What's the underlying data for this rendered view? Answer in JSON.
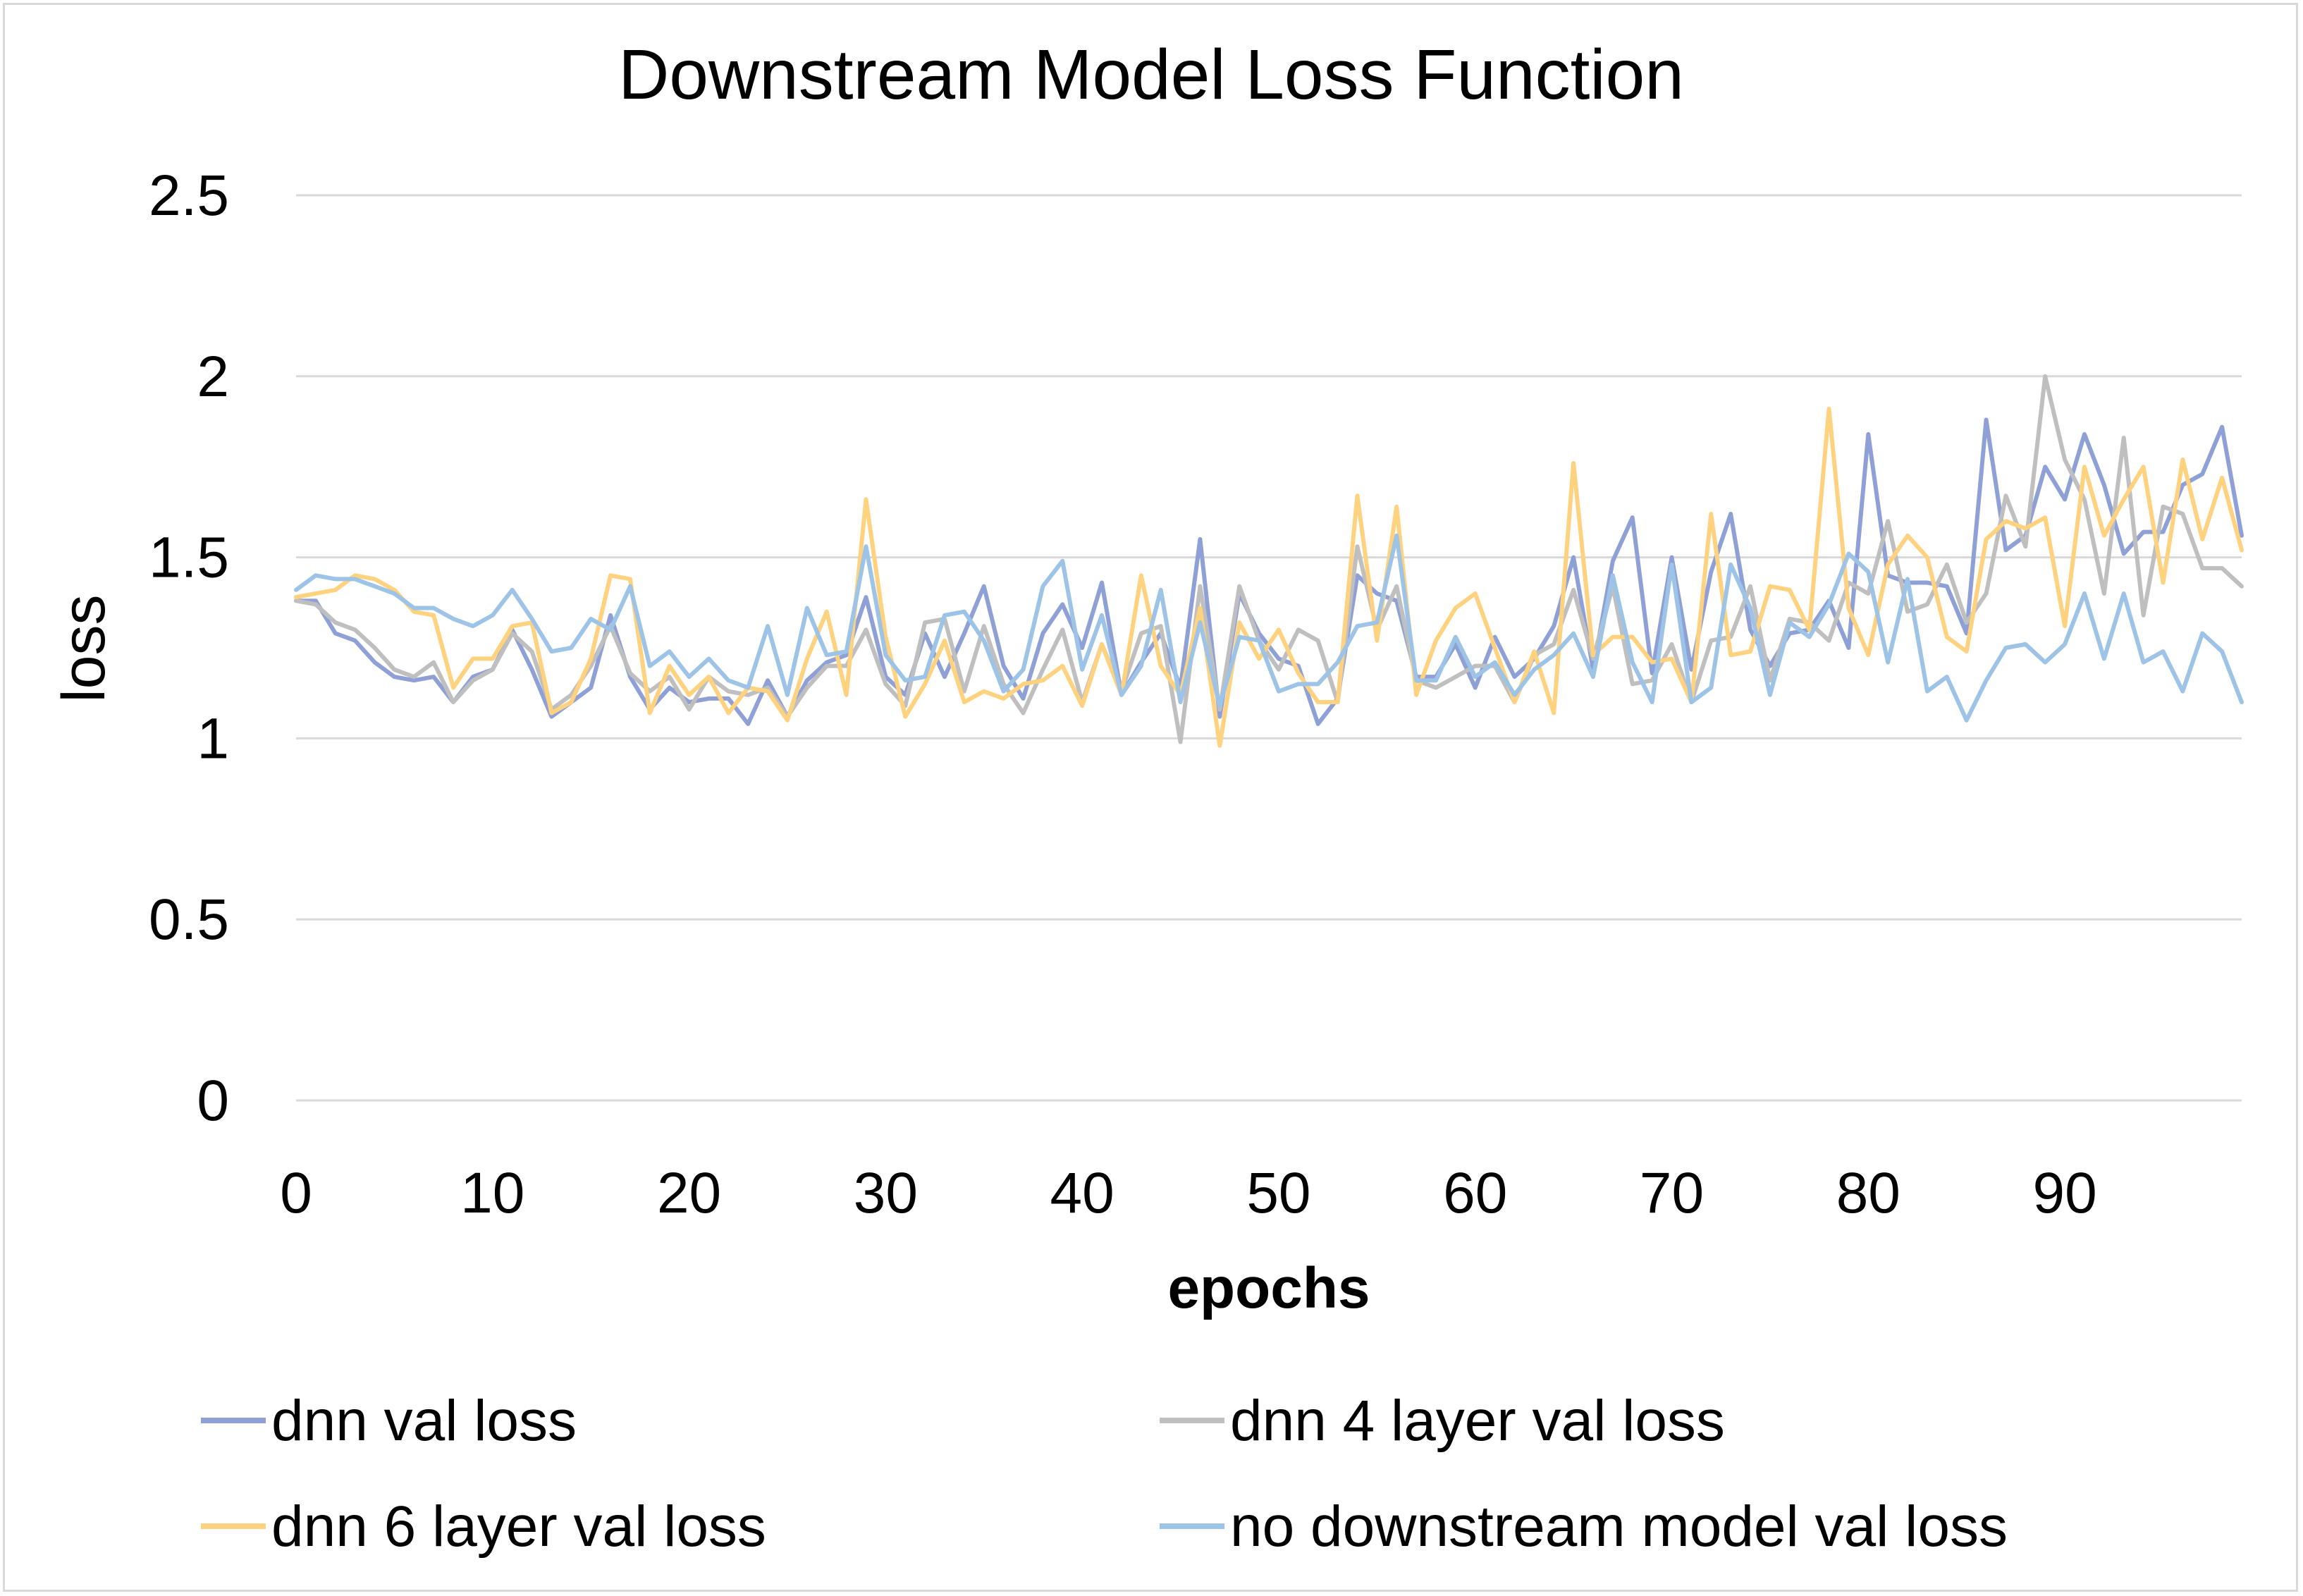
{
  "chart_data": {
    "type": "line",
    "title": "Downstream Model Loss Function",
    "xlabel": "epochs",
    "ylabel": "loss",
    "xlim": [
      0,
      99
    ],
    "ylim": [
      0,
      2.5
    ],
    "x_ticks": [
      "0",
      "10",
      "20",
      "30",
      "40",
      "50",
      "60",
      "70",
      "80",
      "90"
    ],
    "y_ticks": [
      "0",
      "0.5",
      "1",
      "1.5",
      "2",
      "2.5"
    ],
    "grid": true,
    "legend_position": "bottom",
    "series": [
      {
        "name": "dnn val loss",
        "color": "#8ea0d6",
        "values": [
          1.38,
          1.38,
          1.29,
          1.27,
          1.21,
          1.17,
          1.16,
          1.17,
          1.1,
          1.17,
          1.19,
          1.3,
          1.19,
          1.06,
          1.1,
          1.14,
          1.34,
          1.17,
          1.08,
          1.14,
          1.1,
          1.11,
          1.11,
          1.04,
          1.16,
          1.06,
          1.16,
          1.21,
          1.23,
          1.39,
          1.17,
          1.12,
          1.29,
          1.17,
          1.29,
          1.42,
          1.2,
          1.11,
          1.29,
          1.37,
          1.25,
          1.43,
          1.12,
          1.21,
          1.29,
          1.14,
          1.55,
          1.06,
          1.4,
          1.29,
          1.22,
          1.2,
          1.04,
          1.11,
          1.45,
          1.4,
          1.38,
          1.17,
          1.17,
          1.26,
          1.14,
          1.28,
          1.17,
          1.22,
          1.31,
          1.5,
          1.19,
          1.49,
          1.61,
          1.18,
          1.5,
          1.19,
          1.46,
          1.62,
          1.3,
          1.2,
          1.29,
          1.3,
          1.38,
          1.25,
          1.84,
          1.45,
          1.43,
          1.43,
          1.42,
          1.29,
          1.88,
          1.52,
          1.56,
          1.75,
          1.66,
          1.84,
          1.7,
          1.51,
          1.57,
          1.57,
          1.7,
          1.73,
          1.86,
          1.56
        ]
      },
      {
        "name": "dnn 4 layer val loss",
        "color": "#bfbfbf",
        "values": [
          1.38,
          1.37,
          1.32,
          1.3,
          1.25,
          1.19,
          1.17,
          1.21,
          1.1,
          1.16,
          1.19,
          1.29,
          1.24,
          1.08,
          1.12,
          1.2,
          1.31,
          1.18,
          1.13,
          1.17,
          1.08,
          1.17,
          1.13,
          1.12,
          1.14,
          1.06,
          1.14,
          1.2,
          1.2,
          1.3,
          1.15,
          1.09,
          1.32,
          1.33,
          1.13,
          1.31,
          1.15,
          1.07,
          1.19,
          1.3,
          1.1,
          1.26,
          1.13,
          1.29,
          1.31,
          0.99,
          1.42,
          1.08,
          1.42,
          1.27,
          1.19,
          1.3,
          1.27,
          1.1,
          1.53,
          1.3,
          1.42,
          1.16,
          1.14,
          1.17,
          1.2,
          1.2,
          1.1,
          1.23,
          1.26,
          1.41,
          1.22,
          1.42,
          1.15,
          1.16,
          1.26,
          1.1,
          1.27,
          1.28,
          1.42,
          1.16,
          1.33,
          1.32,
          1.27,
          1.43,
          1.4,
          1.6,
          1.35,
          1.37,
          1.48,
          1.32,
          1.4,
          1.67,
          1.53,
          2.0,
          1.77,
          1.66,
          1.4,
          1.83,
          1.34,
          1.64,
          1.62,
          1.47,
          1.47,
          1.42
        ]
      },
      {
        "name": "dnn 6 layer val loss",
        "color": "#ffd27f",
        "values": [
          1.39,
          1.4,
          1.41,
          1.45,
          1.44,
          1.41,
          1.35,
          1.34,
          1.14,
          1.22,
          1.22,
          1.31,
          1.32,
          1.07,
          1.1,
          1.22,
          1.45,
          1.44,
          1.07,
          1.2,
          1.12,
          1.17,
          1.07,
          1.14,
          1.13,
          1.05,
          1.22,
          1.35,
          1.12,
          1.66,
          1.28,
          1.06,
          1.15,
          1.27,
          1.1,
          1.13,
          1.11,
          1.15,
          1.16,
          1.2,
          1.09,
          1.26,
          1.12,
          1.45,
          1.2,
          1.12,
          1.36,
          0.98,
          1.32,
          1.22,
          1.3,
          1.18,
          1.1,
          1.1,
          1.67,
          1.27,
          1.64,
          1.12,
          1.27,
          1.36,
          1.4,
          1.25,
          1.1,
          1.24,
          1.07,
          1.76,
          1.23,
          1.28,
          1.28,
          1.21,
          1.22,
          1.1,
          1.62,
          1.23,
          1.24,
          1.42,
          1.41,
          1.3,
          1.91,
          1.36,
          1.23,
          1.48,
          1.56,
          1.5,
          1.28,
          1.24,
          1.55,
          1.6,
          1.58,
          1.61,
          1.31,
          1.75,
          1.56,
          1.66,
          1.75,
          1.43,
          1.77,
          1.55,
          1.72,
          1.52
        ]
      },
      {
        "name": "no downstream model val loss",
        "color": "#9dc3e6",
        "values": [
          1.41,
          1.45,
          1.44,
          1.44,
          1.42,
          1.4,
          1.36,
          1.36,
          1.33,
          1.31,
          1.34,
          1.41,
          1.33,
          1.24,
          1.25,
          1.33,
          1.3,
          1.42,
          1.2,
          1.24,
          1.17,
          1.22,
          1.16,
          1.14,
          1.31,
          1.12,
          1.36,
          1.23,
          1.24,
          1.53,
          1.23,
          1.16,
          1.17,
          1.34,
          1.35,
          1.27,
          1.13,
          1.19,
          1.42,
          1.49,
          1.19,
          1.34,
          1.12,
          1.2,
          1.41,
          1.1,
          1.32,
          1.09,
          1.28,
          1.27,
          1.13,
          1.15,
          1.15,
          1.21,
          1.31,
          1.32,
          1.56,
          1.16,
          1.16,
          1.28,
          1.17,
          1.21,
          1.12,
          1.19,
          1.23,
          1.29,
          1.17,
          1.45,
          1.21,
          1.1,
          1.48,
          1.1,
          1.14,
          1.48,
          1.36,
          1.12,
          1.32,
          1.28,
          1.37,
          1.51,
          1.46,
          1.21,
          1.44,
          1.13,
          1.17,
          1.05,
          1.16,
          1.25,
          1.26,
          1.21,
          1.26,
          1.4,
          1.22,
          1.4,
          1.21,
          1.24,
          1.13,
          1.29,
          1.24,
          1.1
        ]
      }
    ]
  }
}
